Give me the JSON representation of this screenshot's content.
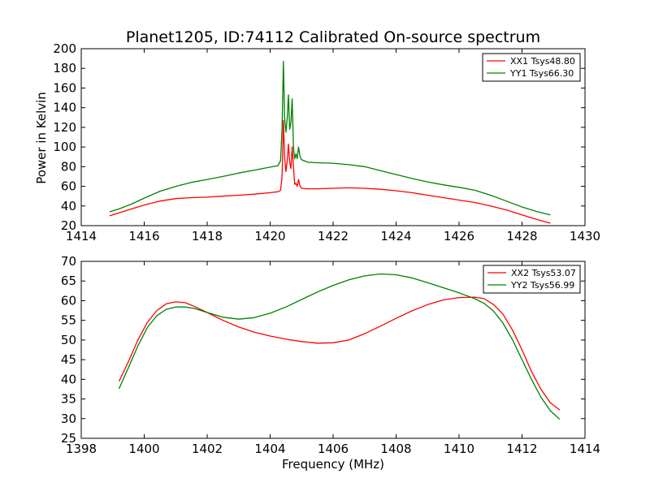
{
  "figure_title": "Planet1205, ID:74112 Calibrated On-source spectrum",
  "chart_data": [
    {
      "type": "line",
      "name": "top-panel",
      "title": "Planet1205, ID:74112 Calibrated On-source spectrum",
      "xlabel": "",
      "ylabel": "Power in Kelvin",
      "xlim": [
        1414,
        1430
      ],
      "ylim": [
        20,
        200
      ],
      "xticks": [
        1414,
        1416,
        1418,
        1420,
        1422,
        1424,
        1426,
        1428,
        1430
      ],
      "yticks": [
        20,
        40,
        60,
        80,
        100,
        120,
        140,
        160,
        180,
        200
      ],
      "xtick_labels": [
        "1414",
        "1416",
        "1418",
        "1420",
        "1422",
        "1424",
        "1426",
        "1428",
        "1430"
      ],
      "ytick_labels": [
        "20",
        "40",
        "60",
        "80",
        "100",
        "120",
        "140",
        "160",
        "180",
        "200"
      ],
      "grid": false,
      "legend": "top-right",
      "series": [
        {
          "name": "XX1 Tsys48.80",
          "color": "#ff0000",
          "x": [
            1414.9,
            1415.2,
            1415.6,
            1416.0,
            1416.5,
            1417.0,
            1417.5,
            1418.0,
            1418.5,
            1419.0,
            1419.5,
            1420.0,
            1420.25,
            1420.33,
            1420.38,
            1420.42,
            1420.46,
            1420.5,
            1420.54,
            1420.58,
            1420.62,
            1420.66,
            1420.7,
            1420.74,
            1420.78,
            1420.82,
            1420.86,
            1420.9,
            1420.95,
            1421.0,
            1421.2,
            1421.5,
            1422.0,
            1422.5,
            1423.0,
            1423.5,
            1424.0,
            1424.5,
            1425.0,
            1425.5,
            1426.0,
            1426.5,
            1427.0,
            1427.5,
            1428.0,
            1428.5,
            1428.9
          ],
          "y": [
            30,
            33,
            37,
            41,
            45,
            47.5,
            48.5,
            49,
            50,
            51,
            52,
            53.5,
            54.5,
            56,
            70,
            127,
            90,
            75,
            85,
            103,
            85,
            78,
            100,
            80,
            62,
            63,
            60,
            67,
            60,
            58,
            57.5,
            57.5,
            58,
            58.5,
            58,
            57,
            55.5,
            53.5,
            51,
            48.5,
            46,
            43.5,
            40,
            36,
            31,
            26,
            22.5
          ]
        },
        {
          "name": "YY1 Tsys66.30",
          "color": "#008000",
          "x": [
            1414.9,
            1415.2,
            1415.6,
            1416.0,
            1416.5,
            1417.0,
            1417.5,
            1418.0,
            1418.5,
            1419.0,
            1419.5,
            1420.0,
            1420.25,
            1420.33,
            1420.38,
            1420.42,
            1420.46,
            1420.5,
            1420.54,
            1420.58,
            1420.62,
            1420.66,
            1420.7,
            1420.74,
            1420.78,
            1420.82,
            1420.86,
            1420.9,
            1420.95,
            1421.0,
            1421.2,
            1421.5,
            1422.0,
            1422.5,
            1423.0,
            1423.5,
            1424.0,
            1424.5,
            1425.0,
            1425.5,
            1426.0,
            1426.5,
            1427.0,
            1427.5,
            1428.0,
            1428.5,
            1428.9
          ],
          "y": [
            34,
            37,
            42,
            48,
            55,
            60,
            64,
            67,
            70,
            73.5,
            76.5,
            79.5,
            81,
            86,
            120,
            187,
            130,
            115,
            128,
            153,
            118,
            125,
            149,
            100,
            88,
            93,
            88,
            100,
            90,
            87,
            84.5,
            84,
            83.5,
            82,
            80,
            76,
            72,
            68,
            64.5,
            61.5,
            59,
            56,
            51,
            45,
            39,
            34,
            31
          ]
        }
      ]
    },
    {
      "type": "line",
      "name": "bottom-panel",
      "title": "",
      "xlabel": "Frequency (MHz)",
      "ylabel": "",
      "xlim": [
        1398,
        1414
      ],
      "ylim": [
        25,
        70
      ],
      "xticks": [
        1398,
        1400,
        1402,
        1404,
        1406,
        1408,
        1410,
        1412,
        1414
      ],
      "yticks": [
        25,
        30,
        35,
        40,
        45,
        50,
        55,
        60,
        65,
        70
      ],
      "xtick_labels": [
        "1398",
        "1400",
        "1402",
        "1404",
        "1406",
        "1408",
        "1410",
        "1412",
        "1414"
      ],
      "ytick_labels": [
        "25",
        "30",
        "35",
        "40",
        "45",
        "50",
        "55",
        "60",
        "65",
        "70"
      ],
      "grid": false,
      "legend": "top-right",
      "series": [
        {
          "name": "XX2 Tsys53.07",
          "color": "#ff0000",
          "x": [
            1399.2,
            1399.5,
            1399.8,
            1400.1,
            1400.4,
            1400.7,
            1401.0,
            1401.3,
            1401.6,
            1402.0,
            1402.5,
            1403.0,
            1403.5,
            1404.0,
            1404.5,
            1405.0,
            1405.5,
            1406.0,
            1406.5,
            1407.0,
            1407.5,
            1408.0,
            1408.5,
            1409.0,
            1409.5,
            1410.0,
            1410.5,
            1410.8,
            1411.1,
            1411.4,
            1411.7,
            1412.0,
            1412.3,
            1412.6,
            1412.9,
            1413.2
          ],
          "y": [
            39.5,
            44.5,
            50,
            54.5,
            57.5,
            59.2,
            59.7,
            59.5,
            58.5,
            57,
            55,
            53.3,
            52,
            51,
            50.2,
            49.6,
            49.2,
            49.3,
            50,
            51.6,
            53.5,
            55.5,
            57.4,
            59,
            60.2,
            60.8,
            60.9,
            60.5,
            59,
            56.5,
            52.5,
            47.5,
            42,
            37.5,
            34,
            32.2
          ]
        },
        {
          "name": "YY2 Tsys56.99",
          "color": "#008000",
          "x": [
            1399.2,
            1399.5,
            1399.8,
            1400.1,
            1400.4,
            1400.7,
            1401.0,
            1401.3,
            1401.6,
            1402.0,
            1402.5,
            1403.0,
            1403.5,
            1404.0,
            1404.5,
            1405.0,
            1405.5,
            1406.0,
            1406.5,
            1407.0,
            1407.5,
            1408.0,
            1408.5,
            1409.0,
            1409.5,
            1410.0,
            1410.5,
            1410.8,
            1411.1,
            1411.4,
            1411.7,
            1412.0,
            1412.3,
            1412.6,
            1412.9,
            1413.2
          ],
          "y": [
            37.6,
            43,
            48.5,
            53.2,
            56.2,
            57.8,
            58.4,
            58.4,
            58,
            57,
            55.8,
            55.3,
            55.7,
            56.8,
            58.4,
            60.3,
            62.2,
            63.9,
            65.3,
            66.3,
            66.8,
            66.6,
            65.8,
            64.6,
            63.3,
            62,
            60.5,
            59.3,
            57.3,
            54.2,
            50,
            45,
            40,
            35.5,
            32,
            29.8
          ]
        }
      ]
    }
  ]
}
